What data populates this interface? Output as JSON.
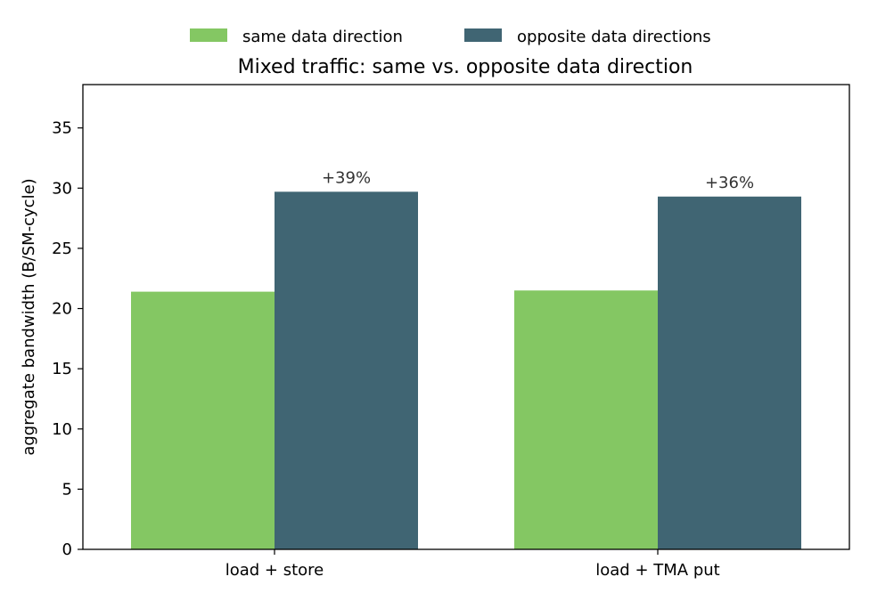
{
  "chart_data": {
    "type": "bar",
    "title": "Mixed traffic: same vs. opposite data direction",
    "xlabel": "",
    "ylabel": "aggregate bandwidth (B/SM-cycle)",
    "categories": [
      "load + store",
      "load + TMA put"
    ],
    "series": [
      {
        "name": "same data direction",
        "values": [
          21.4,
          21.5
        ],
        "color": "#84c763"
      },
      {
        "name": "opposite data directions",
        "values": [
          29.7,
          29.3
        ],
        "color": "#406573"
      }
    ],
    "annotations": [
      "+39%",
      "+36%"
    ],
    "ylim": [
      0,
      38.6
    ],
    "yticks": [
      0,
      5,
      10,
      15,
      20,
      25,
      30,
      35
    ],
    "grid": false,
    "legend_position": "top-center"
  }
}
